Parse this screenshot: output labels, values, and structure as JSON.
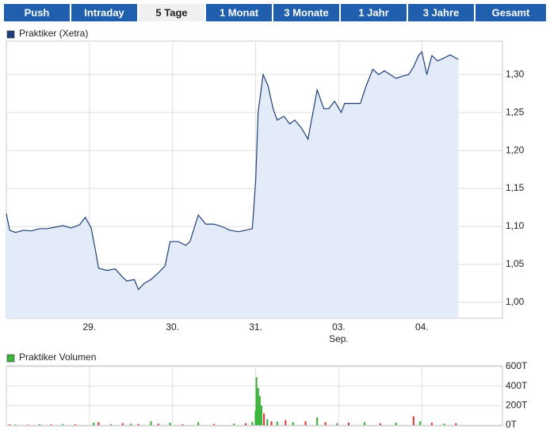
{
  "tabs": [
    "Push",
    "Intraday",
    "5 Tage",
    "1 Monat",
    "3 Monate",
    "1 Jahr",
    "3 Jahre",
    "Gesamt"
  ],
  "selected_tab": 2,
  "chart_data": [
    {
      "type": "area",
      "series": [
        {
          "name": "Praktiker (Xetra)",
          "color": "#1f3f7a",
          "fill_color": "#e4ebf8",
          "values": [
            1.117,
            1.095,
            1.092,
            1.095,
            1.094,
            1.097,
            1.097,
            1.099,
            1.101,
            1.098,
            1.102,
            1.112,
            1.098,
            1.07,
            1.045,
            1.042,
            1.044,
            1.033,
            1.028,
            1.03,
            1.017,
            1.025,
            1.03,
            1.039,
            1.048,
            1.08,
            1.08,
            1.075,
            1.08,
            1.115,
            1.103,
            1.103,
            1.1,
            1.095,
            1.093,
            1.095,
            1.097,
            1.16,
            1.25,
            1.3,
            1.285,
            1.255,
            1.24,
            1.245,
            1.235,
            1.24,
            1.23,
            1.215,
            1.25,
            1.28,
            1.255,
            1.255,
            1.265,
            1.25,
            1.262,
            1.262,
            1.262,
            1.285,
            1.307,
            1.3,
            1.305,
            1.3,
            1.295,
            1.298,
            1.3,
            1.31,
            1.325,
            1.33,
            1.3,
            1.325,
            1.318,
            1.322,
            1.326,
            1.32
          ]
        }
      ],
      "x": [
        0,
        0.04,
        0.11,
        0.21,
        0.3,
        0.4,
        0.49,
        0.59,
        0.68,
        0.78,
        0.88,
        0.95,
        1.02,
        1.07,
        1.11,
        1.21,
        1.31,
        1.4,
        1.45,
        1.54,
        1.59,
        1.66,
        1.74,
        1.83,
        1.91,
        1.97,
        2.07,
        2.16,
        2.21,
        2.31,
        2.4,
        2.5,
        2.59,
        2.69,
        2.79,
        2.88,
        2.96,
        3,
        3.03,
        3.09,
        3.15,
        3.21,
        3.26,
        3.34,
        3.41,
        3.47,
        3.55,
        3.63,
        3.69,
        3.74,
        3.82,
        3.88,
        3.95,
        4.03,
        4.07,
        4.17,
        4.26,
        4.33,
        4.41,
        4.48,
        4.55,
        4.62,
        4.69,
        4.77,
        4.84,
        4.9,
        4.96,
        5,
        5.06,
        5.12,
        5.19,
        5.27,
        5.34,
        5.44
      ],
      "xlim": [
        0,
        5.97
      ],
      "ylim": [
        0.979,
        1.344
      ],
      "xticks": [
        {
          "value": 1,
          "label": "29."
        },
        {
          "value": 2,
          "label": "30."
        },
        {
          "value": 3,
          "label": "31."
        },
        {
          "value": 4,
          "label": "03."
        },
        {
          "value": 5,
          "label": "04."
        }
      ],
      "x_month_label": "Sep.",
      "yticks": [
        {
          "value": 1,
          "label": "1,00"
        },
        {
          "value": 1.05,
          "label": "1,05"
        },
        {
          "value": 1.1,
          "label": "1,10"
        },
        {
          "value": 1.15,
          "label": "1,15"
        },
        {
          "value": 1.2,
          "label": "1,20"
        },
        {
          "value": 1.25,
          "label": "1,25"
        },
        {
          "value": 1.3,
          "label": "1,30"
        }
      ],
      "grid": true
    },
    {
      "type": "bar",
      "series": [
        {
          "name": "Praktiker Volumen",
          "color": "#3cb43c",
          "values": [
            8,
            6,
            5,
            10,
            7,
            12,
            9,
            25,
            30,
            10,
            20,
            15,
            12,
            40,
            15,
            25,
            10,
            30,
            12,
            15,
            20,
            35,
            150,
            490,
            380,
            300,
            200,
            120,
            60,
            40,
            35,
            50,
            30,
            40,
            80,
            30,
            20,
            25,
            30,
            20,
            25,
            90,
            40,
            25,
            15,
            20
          ],
          "bar_colors": [
            "#e03030",
            "#30b030",
            "#e03030",
            "#30b030",
            "#e03030",
            "#30b030",
            "#e03030",
            "#30b030",
            "#e03030",
            "#30b030",
            "#e03030",
            "#30b030",
            "#e03030",
            "#30b030",
            "#e03030",
            "#30b030",
            "#e03030",
            "#30b030",
            "#e03030",
            "#30b030",
            "#e03030",
            "#30b030",
            "#30b030",
            "#30b030",
            "#30b030",
            "#30b030",
            "#30b030",
            "#e03030",
            "#30b030",
            "#e03030",
            "#30b030",
            "#e03030",
            "#30b030",
            "#e03030",
            "#30b030",
            "#e03030",
            "#30b030",
            "#e03030",
            "#30b030",
            "#e03030",
            "#30b030",
            "#e03030",
            "#30b030",
            "#e03030",
            "#30b030",
            "#e03030"
          ]
        }
      ],
      "x": [
        0.04,
        0.11,
        0.26,
        0.4,
        0.54,
        0.68,
        0.83,
        1.05,
        1.11,
        1.26,
        1.4,
        1.5,
        1.59,
        1.74,
        1.83,
        1.97,
        2.12,
        2.31,
        2.5,
        2.74,
        2.88,
        2.96,
        3,
        3.01,
        3.03,
        3.05,
        3.07,
        3.1,
        3.14,
        3.19,
        3.26,
        3.36,
        3.45,
        3.6,
        3.74,
        3.84,
        3.98,
        4.12,
        4.31,
        4.5,
        4.69,
        4.9,
        4.98,
        5.12,
        5.27,
        5.41
      ],
      "xlim": [
        0,
        5.97
      ],
      "ylim": [
        -8,
        608
      ],
      "xticks": [
        1,
        2,
        3,
        4,
        5
      ],
      "yticks": [
        {
          "value": 0,
          "label": "0T"
        },
        {
          "value": 200,
          "label": "200T"
        },
        {
          "value": 400,
          "label": "400T"
        },
        {
          "value": 600,
          "label": "600T"
        }
      ],
      "grid": true
    }
  ]
}
